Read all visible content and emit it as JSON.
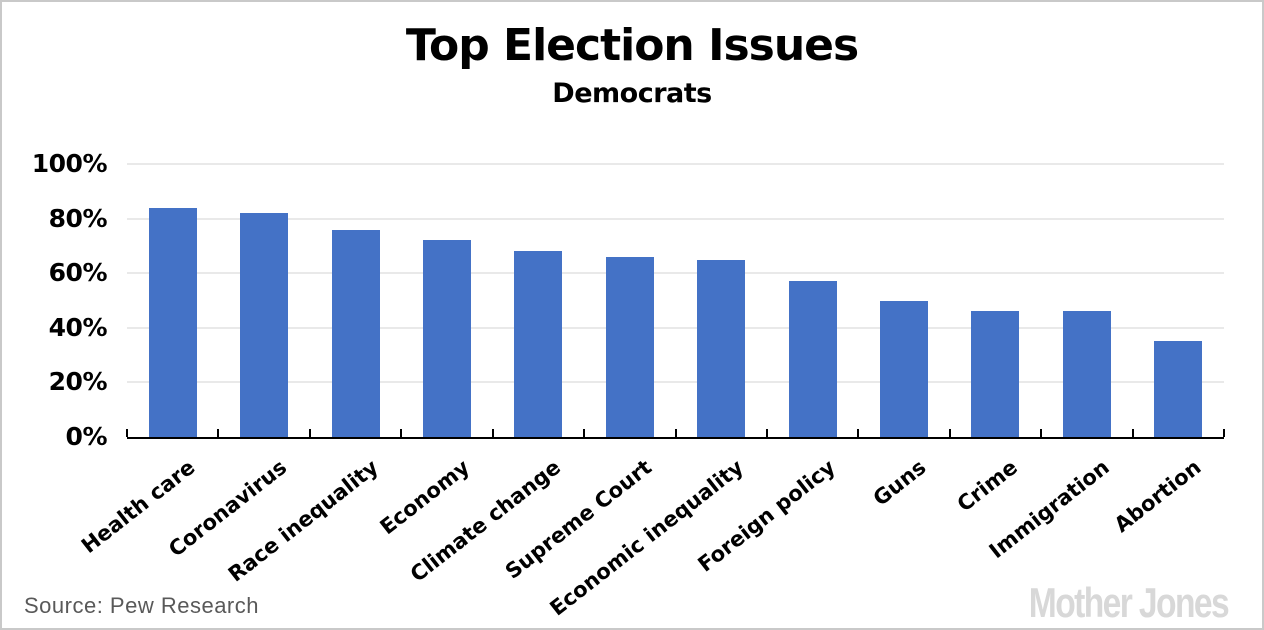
{
  "page": {
    "title": "Top Election Issues",
    "subtitle": "Democrats",
    "source_text": "Source: Pew Research",
    "brand": "Mother Jones"
  },
  "chart_data": {
    "type": "bar",
    "title": "Top Election Issues",
    "subtitle": "Democrats",
    "categories": [
      "Health care",
      "Coronavirus",
      "Race inequality",
      "Economy",
      "Climate change",
      "Supreme Court",
      "Economic inequality",
      "Foreign policy",
      "Guns",
      "Crime",
      "Immigration",
      "Abortion"
    ],
    "values": [
      84,
      82,
      76,
      72,
      68,
      66,
      65,
      57,
      50,
      46,
      46,
      35
    ],
    "unit": "%",
    "ylim": [
      0,
      100
    ],
    "ytick_step": 20,
    "ytick_labels": [
      "0%",
      "20%",
      "40%",
      "60%",
      "80%",
      "100%"
    ],
    "grid": true,
    "legend": false,
    "bar_color": "#4472C6",
    "gridline_color": "#e9e9e9",
    "axis_color": "#000000",
    "xlabel_rotation_deg": -38,
    "source": "Source: Pew Research",
    "brand": "Mother Jones"
  }
}
